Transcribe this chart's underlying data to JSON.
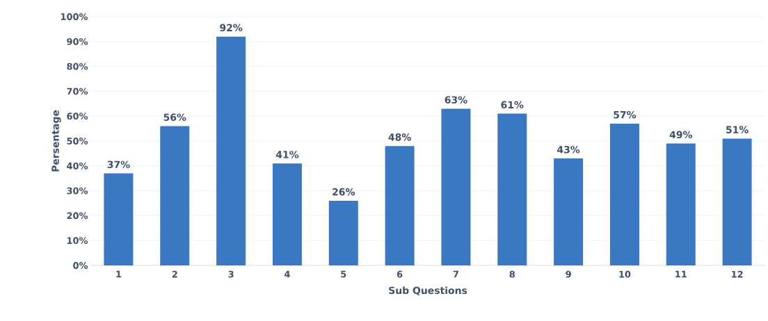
{
  "chart_data": {
    "type": "bar",
    "xlabel": "Sub Questions",
    "ylabel": "Persentage",
    "categories": [
      "1",
      "2",
      "3",
      "4",
      "5",
      "6",
      "7",
      "8",
      "9",
      "10",
      "11",
      "12"
    ],
    "values": [
      37,
      56,
      92,
      41,
      26,
      48,
      63,
      61,
      43,
      57,
      49,
      51
    ],
    "value_labels": [
      "37%",
      "56%",
      "92%",
      "41%",
      "26%",
      "48%",
      "63%",
      "61%",
      "43%",
      "57%",
      "49%",
      "51%"
    ],
    "color": "#3a78c4",
    "ylim": [
      0,
      100
    ],
    "yticks": [
      {
        "value": 0,
        "label": "0%"
      },
      {
        "value": 10,
        "label": "10%"
      },
      {
        "value": 20,
        "label": "20%"
      },
      {
        "value": 30,
        "label": "30%"
      },
      {
        "value": 40,
        "label": "40%"
      },
      {
        "value": 50,
        "label": "50%"
      },
      {
        "value": 60,
        "label": "60%"
      },
      {
        "value": 70,
        "label": "70%"
      },
      {
        "value": 80,
        "label": "80%"
      },
      {
        "value": 90,
        "label": "90%"
      },
      {
        "value": 100,
        "label": "100%"
      }
    ],
    "grid": "y"
  }
}
